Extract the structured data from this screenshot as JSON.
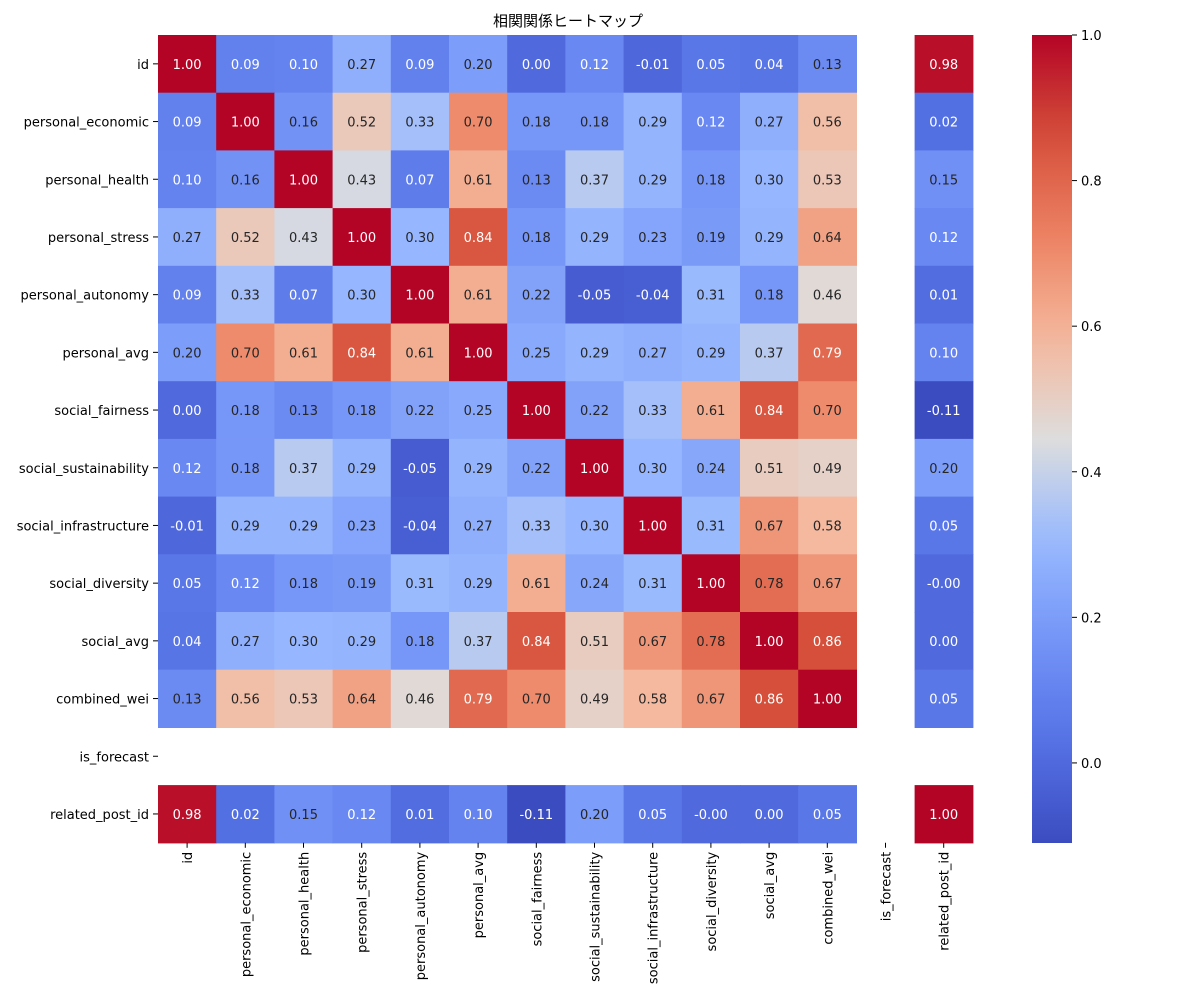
{
  "chart_data": {
    "type": "heatmap",
    "title": "相関関係ヒートマップ",
    "colormap": "coolwarm",
    "vmin": -0.11,
    "vmax": 1.0,
    "row_labels": [
      "id",
      "personal_economic",
      "personal_health",
      "personal_stress",
      "personal_autonomy",
      "personal_avg",
      "social_fairness",
      "social_sustainability",
      "social_infrastructure",
      "social_diversity",
      "social_avg",
      "combined_wei",
      "is_forecast",
      "related_post_id"
    ],
    "col_labels": [
      "id",
      "personal_economic",
      "personal_health",
      "personal_stress",
      "personal_autonomy",
      "personal_avg",
      "social_fairness",
      "social_sustainability",
      "social_infrastructure",
      "social_diversity",
      "social_avg",
      "combined_wei",
      "is_forecast",
      "related_post_id"
    ],
    "values": [
      [
        1.0,
        0.09,
        0.1,
        0.27,
        0.09,
        0.2,
        0.0,
        0.12,
        -0.01,
        0.05,
        0.04,
        0.13,
        null,
        0.98
      ],
      [
        0.09,
        1.0,
        0.16,
        0.52,
        0.33,
        0.7,
        0.18,
        0.18,
        0.29,
        0.12,
        0.27,
        0.56,
        null,
        0.02
      ],
      [
        0.1,
        0.16,
        1.0,
        0.43,
        0.07,
        0.61,
        0.13,
        0.37,
        0.29,
        0.18,
        0.3,
        0.53,
        null,
        0.15
      ],
      [
        0.27,
        0.52,
        0.43,
        1.0,
        0.3,
        0.84,
        0.18,
        0.29,
        0.23,
        0.19,
        0.29,
        0.64,
        null,
        0.12
      ],
      [
        0.09,
        0.33,
        0.07,
        0.3,
        1.0,
        0.61,
        0.22,
        -0.05,
        -0.04,
        0.31,
        0.18,
        0.46,
        null,
        0.01
      ],
      [
        0.2,
        0.7,
        0.61,
        0.84,
        0.61,
        1.0,
        0.25,
        0.29,
        0.27,
        0.29,
        0.37,
        0.79,
        null,
        0.1
      ],
      [
        0.0,
        0.18,
        0.13,
        0.18,
        0.22,
        0.25,
        1.0,
        0.22,
        0.33,
        0.61,
        0.84,
        0.7,
        null,
        -0.11
      ],
      [
        0.12,
        0.18,
        0.37,
        0.29,
        -0.05,
        0.29,
        0.22,
        1.0,
        0.3,
        0.24,
        0.51,
        0.49,
        null,
        0.2
      ],
      [
        -0.01,
        0.29,
        0.29,
        0.23,
        -0.04,
        0.27,
        0.33,
        0.3,
        1.0,
        0.31,
        0.67,
        0.58,
        null,
        0.05
      ],
      [
        0.05,
        0.12,
        0.18,
        0.19,
        0.31,
        0.29,
        0.61,
        0.24,
        0.31,
        1.0,
        0.78,
        0.67,
        null,
        "-0.00"
      ],
      [
        0.04,
        0.27,
        0.3,
        0.29,
        0.18,
        0.37,
        0.84,
        0.51,
        0.67,
        0.78,
        1.0,
        0.86,
        null,
        0.0
      ],
      [
        0.13,
        0.56,
        0.53,
        0.64,
        0.46,
        0.79,
        0.7,
        0.49,
        0.58,
        0.67,
        0.86,
        1.0,
        null,
        0.05
      ],
      [
        null,
        null,
        null,
        null,
        null,
        null,
        null,
        null,
        null,
        null,
        null,
        null,
        null,
        null
      ],
      [
        0.98,
        0.02,
        0.15,
        0.12,
        0.01,
        0.1,
        -0.11,
        0.2,
        0.05,
        "-0.00",
        0.0,
        0.05,
        null,
        1.0
      ]
    ],
    "colorbar": {
      "ticks": [
        0.0,
        0.2,
        0.4,
        0.6,
        0.8,
        1.0
      ],
      "tick_labels": [
        "0.0",
        "0.2",
        "0.4",
        "0.6",
        "0.8",
        "1.0"
      ]
    }
  }
}
